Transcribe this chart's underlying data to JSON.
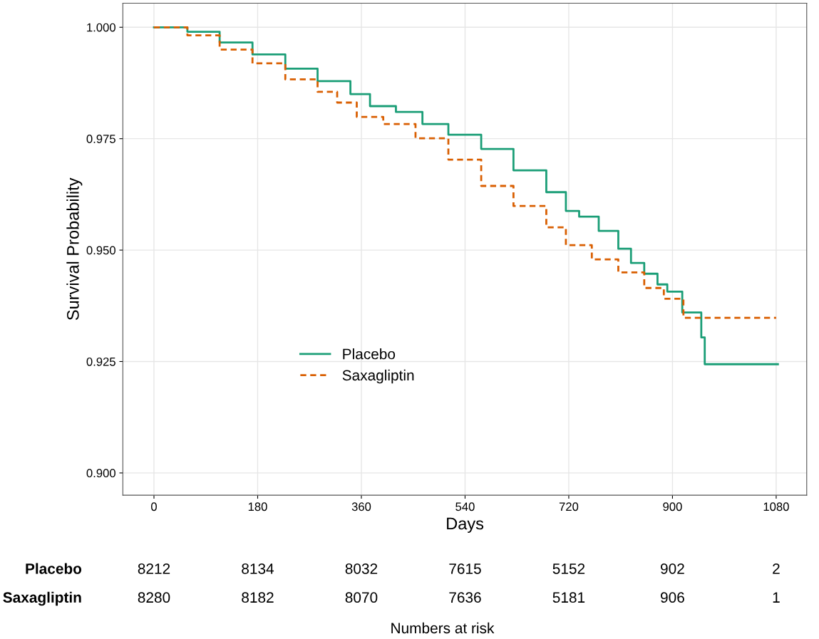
{
  "chart_data": {
    "type": "step",
    "xlabel": "Days",
    "ylabel": "Survival Probability",
    "xlim": [
      -54,
      1133
    ],
    "ylim": [
      0.895,
      1.0054
    ],
    "xticks": [
      0,
      180,
      360,
      540,
      720,
      900,
      1080
    ],
    "yticks": [
      {
        "value": 0.9,
        "label": "0.900"
      },
      {
        "value": 0.925,
        "label": "0.925"
      },
      {
        "value": 0.95,
        "label": "0.950"
      },
      {
        "value": 0.975,
        "label": "0.975"
      },
      {
        "value": 1.0,
        "label": "1.000"
      }
    ],
    "grid": true,
    "legend": "lower left",
    "series": [
      {
        "name": "Placebo",
        "color": "#1b9e77",
        "line_style": "solid",
        "x": [
          0,
          58,
          114,
          171,
          228,
          284,
          341,
          375,
          420,
          466,
          511,
          568,
          624,
          681,
          715,
          738,
          772,
          806,
          828,
          851,
          874,
          891,
          913,
          917,
          947,
          950,
          956,
          1083
        ],
        "values": [
          1.0,
          0.999,
          0.9966,
          0.9939,
          0.9907,
          0.9879,
          0.985,
          0.9823,
          0.981,
          0.9783,
          0.9759,
          0.9727,
          0.9679,
          0.963,
          0.9588,
          0.9575,
          0.9543,
          0.9503,
          0.9471,
          0.9447,
          0.9423,
          0.9407,
          0.9407,
          0.936,
          0.936,
          0.9304,
          0.9244,
          0.9244
        ]
      },
      {
        "name": "Saxagliptin",
        "color": "#d95f02",
        "line_style": "dashed",
        "x": [
          0,
          58,
          114,
          171,
          228,
          284,
          318,
          352,
          398,
          454,
          511,
          568,
          624,
          681,
          715,
          760,
          806,
          851,
          885,
          919,
          1080
        ],
        "values": [
          1.0,
          0.9982,
          0.995,
          0.9919,
          0.9883,
          0.9855,
          0.9831,
          0.9799,
          0.9783,
          0.9751,
          0.9703,
          0.9644,
          0.9599,
          0.9551,
          0.9511,
          0.9479,
          0.945,
          0.9415,
          0.9391,
          0.9348,
          0.9348
        ]
      }
    ],
    "annotations": [
      "Placebo",
      "8212",
      "8134",
      "8032",
      "7615",
      "5152",
      "902",
      "2",
      "Saxagliptin",
      "8280",
      "8182",
      "8070",
      "7636",
      "5181",
      "906",
      "1",
      "Numbers at risk"
    ]
  }
}
